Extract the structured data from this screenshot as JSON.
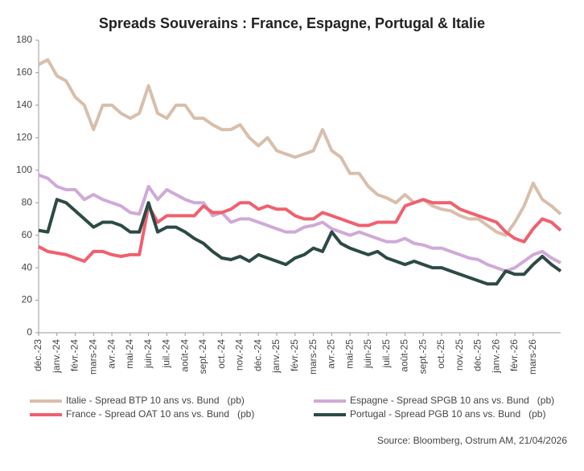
{
  "chart_data": {
    "type": "line",
    "title": "Spreads Souverains : France, Espagne, Portugal & Italie",
    "categories": [
      "déc.-23",
      null,
      "janv.-24",
      null,
      "févr.-24",
      null,
      "mars-24",
      null,
      "avr.-24",
      null,
      "mai-24",
      null,
      "juin-24",
      null,
      "juil.-24",
      null,
      "août-24",
      null,
      "sept.-24",
      null,
      "oct.-24",
      null,
      "nov.-24",
      null,
      "déc.-24",
      null,
      "janv.-25",
      null,
      "févr.-25",
      null,
      "mars-25",
      null,
      "avr.-25",
      null,
      "mai-25",
      null,
      "juin-25",
      null,
      "juil.-25",
      null,
      "août-25",
      null,
      "sept.-25",
      null,
      "oct.-25",
      null,
      "nov.-25",
      null,
      "déc.-25",
      null,
      "janv.-26",
      null,
      "févr.-26",
      null,
      "mars-26",
      null,
      null,
      null
    ],
    "series": [
      {
        "name": "Italie - Spread BTP 10 ans vs. Bund   (pb)",
        "color": "#d8bfac",
        "values": [
          165,
          168,
          158,
          155,
          145,
          140,
          125,
          140,
          140,
          135,
          132,
          135,
          152,
          135,
          132,
          140,
          140,
          132,
          132,
          128,
          125,
          125,
          128,
          120,
          115,
          120,
          112,
          110,
          108,
          110,
          112,
          125,
          112,
          108,
          98,
          98,
          90,
          85,
          83,
          80,
          85,
          80,
          82,
          78,
          76,
          75,
          72,
          70,
          70,
          66,
          62,
          60,
          68,
          78,
          92,
          82,
          78,
          73
        ]
      },
      {
        "name": "Espagne - Spread SPGB 10 ans vs. Bund   (pb)",
        "color": "#cfaad8",
        "values": [
          97,
          95,
          90,
          88,
          88,
          82,
          85,
          82,
          80,
          78,
          74,
          73,
          90,
          82,
          88,
          85,
          82,
          80,
          80,
          72,
          74,
          68,
          70,
          70,
          68,
          66,
          64,
          62,
          62,
          65,
          66,
          68,
          64,
          62,
          60,
          62,
          60,
          58,
          56,
          56,
          58,
          55,
          54,
          52,
          52,
          50,
          48,
          46,
          45,
          42,
          40,
          38,
          40,
          44,
          48,
          50,
          46,
          43
        ]
      },
      {
        "name": "France - Spread OAT 10 ans vs. Bund   (pb)",
        "color": "#f0606e",
        "values": [
          53,
          50,
          49,
          48,
          46,
          44,
          50,
          50,
          48,
          47,
          48,
          48,
          78,
          68,
          72,
          72,
          72,
          72,
          78,
          74,
          74,
          76,
          80,
          80,
          76,
          78,
          76,
          76,
          72,
          70,
          70,
          74,
          72,
          70,
          68,
          66,
          66,
          68,
          68,
          68,
          78,
          80,
          82,
          80,
          80,
          80,
          76,
          74,
          72,
          70,
          68,
          62,
          58,
          56,
          64,
          70,
          68,
          63
        ]
      },
      {
        "name": "Portugal - Spread PGB 10 ans vs. Bund   (pb)",
        "color": "#2d4a45",
        "values": [
          63,
          62,
          82,
          80,
          75,
          70,
          65,
          68,
          68,
          66,
          62,
          62,
          80,
          62,
          65,
          65,
          62,
          58,
          55,
          50,
          46,
          45,
          47,
          44,
          48,
          46,
          44,
          42,
          46,
          48,
          52,
          50,
          62,
          55,
          52,
          50,
          48,
          50,
          46,
          44,
          42,
          44,
          42,
          40,
          40,
          38,
          36,
          34,
          32,
          30,
          30,
          38,
          36,
          36,
          42,
          47,
          42,
          38
        ]
      }
    ],
    "ylim": [
      0,
      180
    ],
    "yticks": [
      0,
      20,
      40,
      60,
      80,
      100,
      120,
      140,
      160,
      180
    ],
    "grid": false,
    "source": "Source: Bloomberg, Ostrum AM, 21/04/2026"
  }
}
